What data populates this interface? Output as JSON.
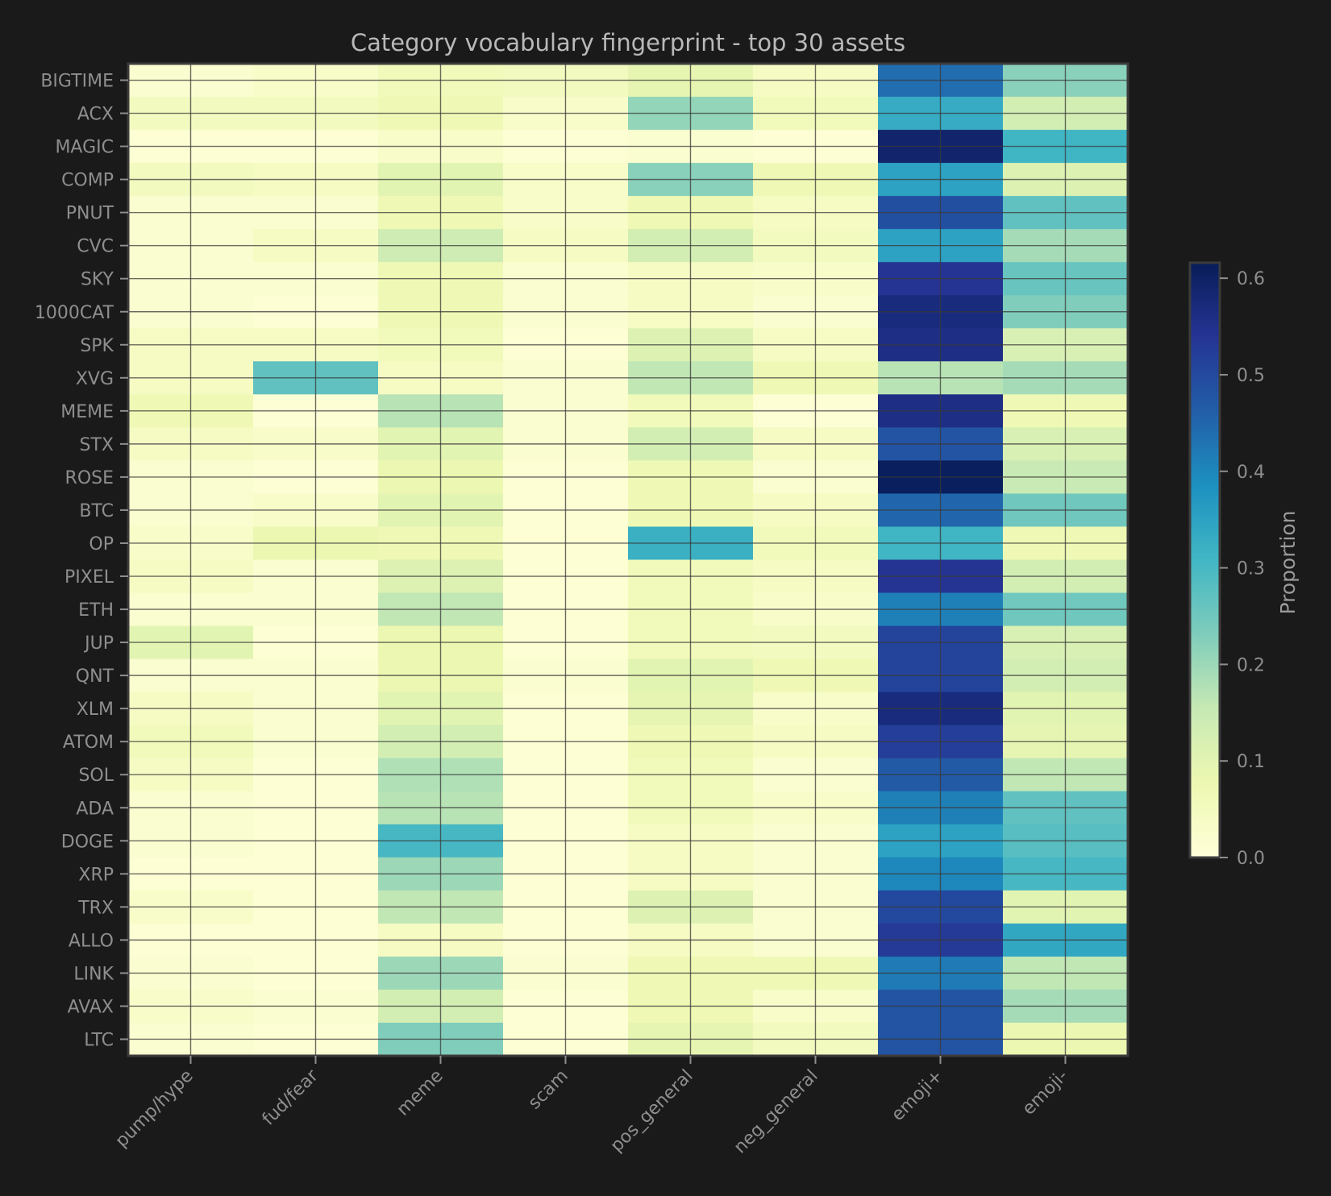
{
  "chart_data": {
    "type": "heatmap",
    "title": "Category vocabulary fingerprint - top 30 assets",
    "xlabel": "",
    "ylabel": "",
    "x_categories": [
      "pump/hype",
      "fud/fear",
      "meme",
      "scam",
      "pos_general",
      "neg_general",
      "emoji+",
      "emoji-"
    ],
    "y_categories": [
      "BIGTIME",
      "ACX",
      "MAGIC",
      "COMP",
      "PNUT",
      "CVC",
      "SKY",
      "1000CAT",
      "SPK",
      "XVG",
      "MEME",
      "STX",
      "ROSE",
      "BTC",
      "OP",
      "PIXEL",
      "ETH",
      "JUP",
      "QNT",
      "XLM",
      "ATOM",
      "SOL",
      "ADA",
      "DOGE",
      "XRP",
      "TRX",
      "ALLO",
      "LINK",
      "AVAX",
      "LTC"
    ],
    "values": [
      [
        0.02,
        0.03,
        0.06,
        0.05,
        0.09,
        0.04,
        0.44,
        0.22
      ],
      [
        0.05,
        0.05,
        0.07,
        0.03,
        0.21,
        0.06,
        0.33,
        0.13
      ],
      [
        0.01,
        0.01,
        0.03,
        0.01,
        0.02,
        0.01,
        0.59,
        0.31
      ],
      [
        0.05,
        0.04,
        0.1,
        0.03,
        0.22,
        0.07,
        0.35,
        0.11
      ],
      [
        0.02,
        0.02,
        0.07,
        0.03,
        0.07,
        0.04,
        0.49,
        0.27
      ],
      [
        0.02,
        0.04,
        0.14,
        0.04,
        0.13,
        0.05,
        0.35,
        0.19
      ],
      [
        0.02,
        0.02,
        0.07,
        0.02,
        0.04,
        0.03,
        0.54,
        0.26
      ],
      [
        0.02,
        0.01,
        0.07,
        0.02,
        0.04,
        0.02,
        0.57,
        0.23
      ],
      [
        0.04,
        0.04,
        0.06,
        0.01,
        0.11,
        0.04,
        0.56,
        0.12
      ],
      [
        0.04,
        0.27,
        0.04,
        0.02,
        0.16,
        0.07,
        0.17,
        0.19
      ],
      [
        0.07,
        0.01,
        0.17,
        0.02,
        0.06,
        0.01,
        0.56,
        0.07
      ],
      [
        0.04,
        0.03,
        0.1,
        0.02,
        0.13,
        0.04,
        0.48,
        0.12
      ],
      [
        0.02,
        0.01,
        0.08,
        0.01,
        0.07,
        0.02,
        0.61,
        0.15
      ],
      [
        0.02,
        0.03,
        0.1,
        0.01,
        0.07,
        0.04,
        0.45,
        0.25
      ],
      [
        0.03,
        0.08,
        0.07,
        0.01,
        0.32,
        0.06,
        0.31,
        0.07
      ],
      [
        0.04,
        0.02,
        0.11,
        0.01,
        0.06,
        0.04,
        0.54,
        0.13
      ],
      [
        0.02,
        0.02,
        0.16,
        0.01,
        0.06,
        0.03,
        0.41,
        0.25
      ],
      [
        0.1,
        0.01,
        0.08,
        0.01,
        0.06,
        0.05,
        0.51,
        0.12
      ],
      [
        0.02,
        0.02,
        0.08,
        0.02,
        0.1,
        0.07,
        0.51,
        0.13
      ],
      [
        0.04,
        0.02,
        0.1,
        0.01,
        0.09,
        0.03,
        0.57,
        0.1
      ],
      [
        0.06,
        0.02,
        0.13,
        0.01,
        0.07,
        0.04,
        0.52,
        0.09
      ],
      [
        0.04,
        0.01,
        0.18,
        0.01,
        0.06,
        0.02,
        0.47,
        0.16
      ],
      [
        0.02,
        0.01,
        0.17,
        0.01,
        0.06,
        0.03,
        0.41,
        0.27
      ],
      [
        0.02,
        0.01,
        0.3,
        0.01,
        0.04,
        0.02,
        0.35,
        0.28
      ],
      [
        0.01,
        0.01,
        0.2,
        0.01,
        0.04,
        0.02,
        0.4,
        0.3
      ],
      [
        0.03,
        0.01,
        0.16,
        0.01,
        0.11,
        0.02,
        0.5,
        0.1
      ],
      [
        0.01,
        0.01,
        0.04,
        0.01,
        0.04,
        0.02,
        0.53,
        0.34
      ],
      [
        0.02,
        0.01,
        0.2,
        0.02,
        0.07,
        0.07,
        0.42,
        0.16
      ],
      [
        0.03,
        0.02,
        0.13,
        0.01,
        0.07,
        0.03,
        0.48,
        0.19
      ],
      [
        0.02,
        0.01,
        0.23,
        0.01,
        0.09,
        0.05,
        0.48,
        0.08
      ]
    ],
    "colormap": "YlGnBu",
    "vmin": 0.0,
    "vmax": 0.616,
    "grid": true,
    "colorbar": {
      "label": "Proportion",
      "ticks": [
        0.0,
        0.1,
        0.2,
        0.3,
        0.4,
        0.5,
        0.6
      ],
      "tick_labels": [
        "0.0",
        "0.1",
        "0.2",
        "0.3",
        "0.4",
        "0.5",
        "0.6"
      ],
      "placement": "right"
    }
  },
  "theme": {
    "background": "#1a1a1a",
    "text_color": "#8e8e8e",
    "colormap_stops": [
      "#ffffd9",
      "#edf8b1",
      "#c7e9b4",
      "#7fcdbb",
      "#41b6c4",
      "#1d91c0",
      "#225ea8",
      "#253494",
      "#081d58"
    ]
  }
}
